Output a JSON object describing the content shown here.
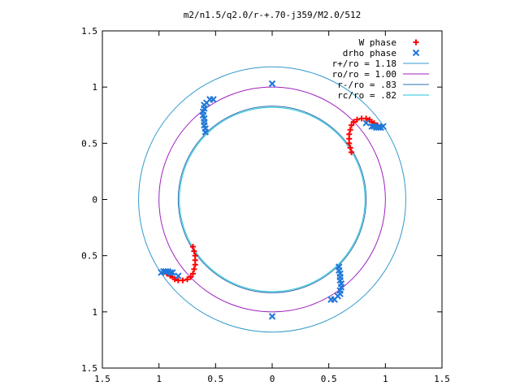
{
  "chart_data": {
    "type": "scatter",
    "title": "m2/n1.5/q2.0/r-+.70-j359/M2.0/512",
    "xlim": [
      -1.5,
      1.5
    ],
    "ylim": [
      -1.5,
      1.5
    ],
    "x_ticks": [
      -1.5,
      -1,
      -0.5,
      0,
      0.5,
      1,
      1.5
    ],
    "y_ticks": [
      -1.5,
      -1,
      -0.5,
      0,
      0.5,
      1,
      1.5
    ],
    "x_tick_labels": [
      "1.5",
      "1",
      "0.5",
      "0",
      "0.5",
      "1",
      "1.5"
    ],
    "y_tick_labels": [
      "1.5",
      "1",
      "0.5",
      "0",
      "0.5",
      "1",
      "1.5"
    ],
    "grid": false,
    "legend_position": "top-right",
    "circles": [
      {
        "name": "r+/ro = 1.18",
        "radius": 1.18,
        "color": "#3399cc"
      },
      {
        "name": "ro/ro = 1.00",
        "radius": 1.0,
        "color": "#a020c0"
      },
      {
        "name": "r-/ro = .83",
        "radius": 0.83,
        "color": "#2a6fb0"
      },
      {
        "name": "rc/ro = .82",
        "radius": 0.82,
        "color": "#22c4d4"
      }
    ],
    "series": [
      {
        "name": "W phase",
        "marker": "+",
        "color": "#ff0000",
        "points": [
          [
            0.7,
            0.42
          ],
          [
            0.69,
            0.46
          ],
          [
            0.68,
            0.5
          ],
          [
            0.68,
            0.54
          ],
          [
            0.68,
            0.58
          ],
          [
            0.69,
            0.62
          ],
          [
            0.7,
            0.66
          ],
          [
            0.72,
            0.69
          ],
          [
            0.75,
            0.71
          ],
          [
            0.79,
            0.72
          ],
          [
            0.83,
            0.72
          ],
          [
            0.86,
            0.71
          ],
          [
            0.88,
            0.69
          ],
          [
            0.9,
            0.68
          ],
          [
            0.93,
            0.66
          ],
          [
            -0.7,
            -0.42
          ],
          [
            -0.69,
            -0.46
          ],
          [
            -0.68,
            -0.5
          ],
          [
            -0.68,
            -0.54
          ],
          [
            -0.68,
            -0.58
          ],
          [
            -0.69,
            -0.62
          ],
          [
            -0.7,
            -0.66
          ],
          [
            -0.72,
            -0.69
          ],
          [
            -0.75,
            -0.71
          ],
          [
            -0.79,
            -0.72
          ],
          [
            -0.83,
            -0.72
          ],
          [
            -0.86,
            -0.71
          ],
          [
            -0.88,
            -0.69
          ],
          [
            -0.9,
            -0.68
          ],
          [
            -0.93,
            -0.66
          ]
        ]
      },
      {
        "name": "drho phase",
        "marker": "x",
        "color": "#1f77d8",
        "points": [
          [
            -0.59,
            0.6
          ],
          [
            -0.59,
            0.63
          ],
          [
            -0.6,
            0.66
          ],
          [
            -0.6,
            0.69
          ],
          [
            -0.6,
            0.72
          ],
          [
            -0.61,
            0.75
          ],
          [
            -0.61,
            0.78
          ],
          [
            -0.6,
            0.81
          ],
          [
            -0.6,
            0.84
          ],
          [
            -0.58,
            0.86
          ],
          [
            0.59,
            -0.6
          ],
          [
            0.59,
            -0.63
          ],
          [
            0.6,
            -0.66
          ],
          [
            0.6,
            -0.69
          ],
          [
            0.6,
            -0.72
          ],
          [
            0.61,
            -0.75
          ],
          [
            0.61,
            -0.78
          ],
          [
            0.6,
            -0.81
          ],
          [
            0.6,
            -0.84
          ],
          [
            0.58,
            -0.86
          ],
          [
            0.88,
            0.65
          ],
          [
            0.9,
            0.65
          ],
          [
            0.92,
            0.64
          ],
          [
            0.94,
            0.64
          ],
          [
            0.96,
            0.64
          ],
          [
            0.98,
            0.65
          ],
          [
            -0.88,
            -0.65
          ],
          [
            -0.9,
            -0.65
          ],
          [
            -0.92,
            -0.64
          ],
          [
            -0.94,
            -0.64
          ],
          [
            -0.96,
            -0.64
          ],
          [
            -0.98,
            -0.65
          ],
          [
            0.83,
            0.68
          ],
          [
            -0.83,
            -0.68
          ],
          [
            0.52,
            -0.89
          ],
          [
            -0.52,
            0.89
          ],
          [
            0.0,
            -1.04
          ],
          [
            0.0,
            1.03
          ],
          [
            -0.55,
            0.89
          ],
          [
            0.55,
            -0.89
          ]
        ]
      }
    ]
  }
}
